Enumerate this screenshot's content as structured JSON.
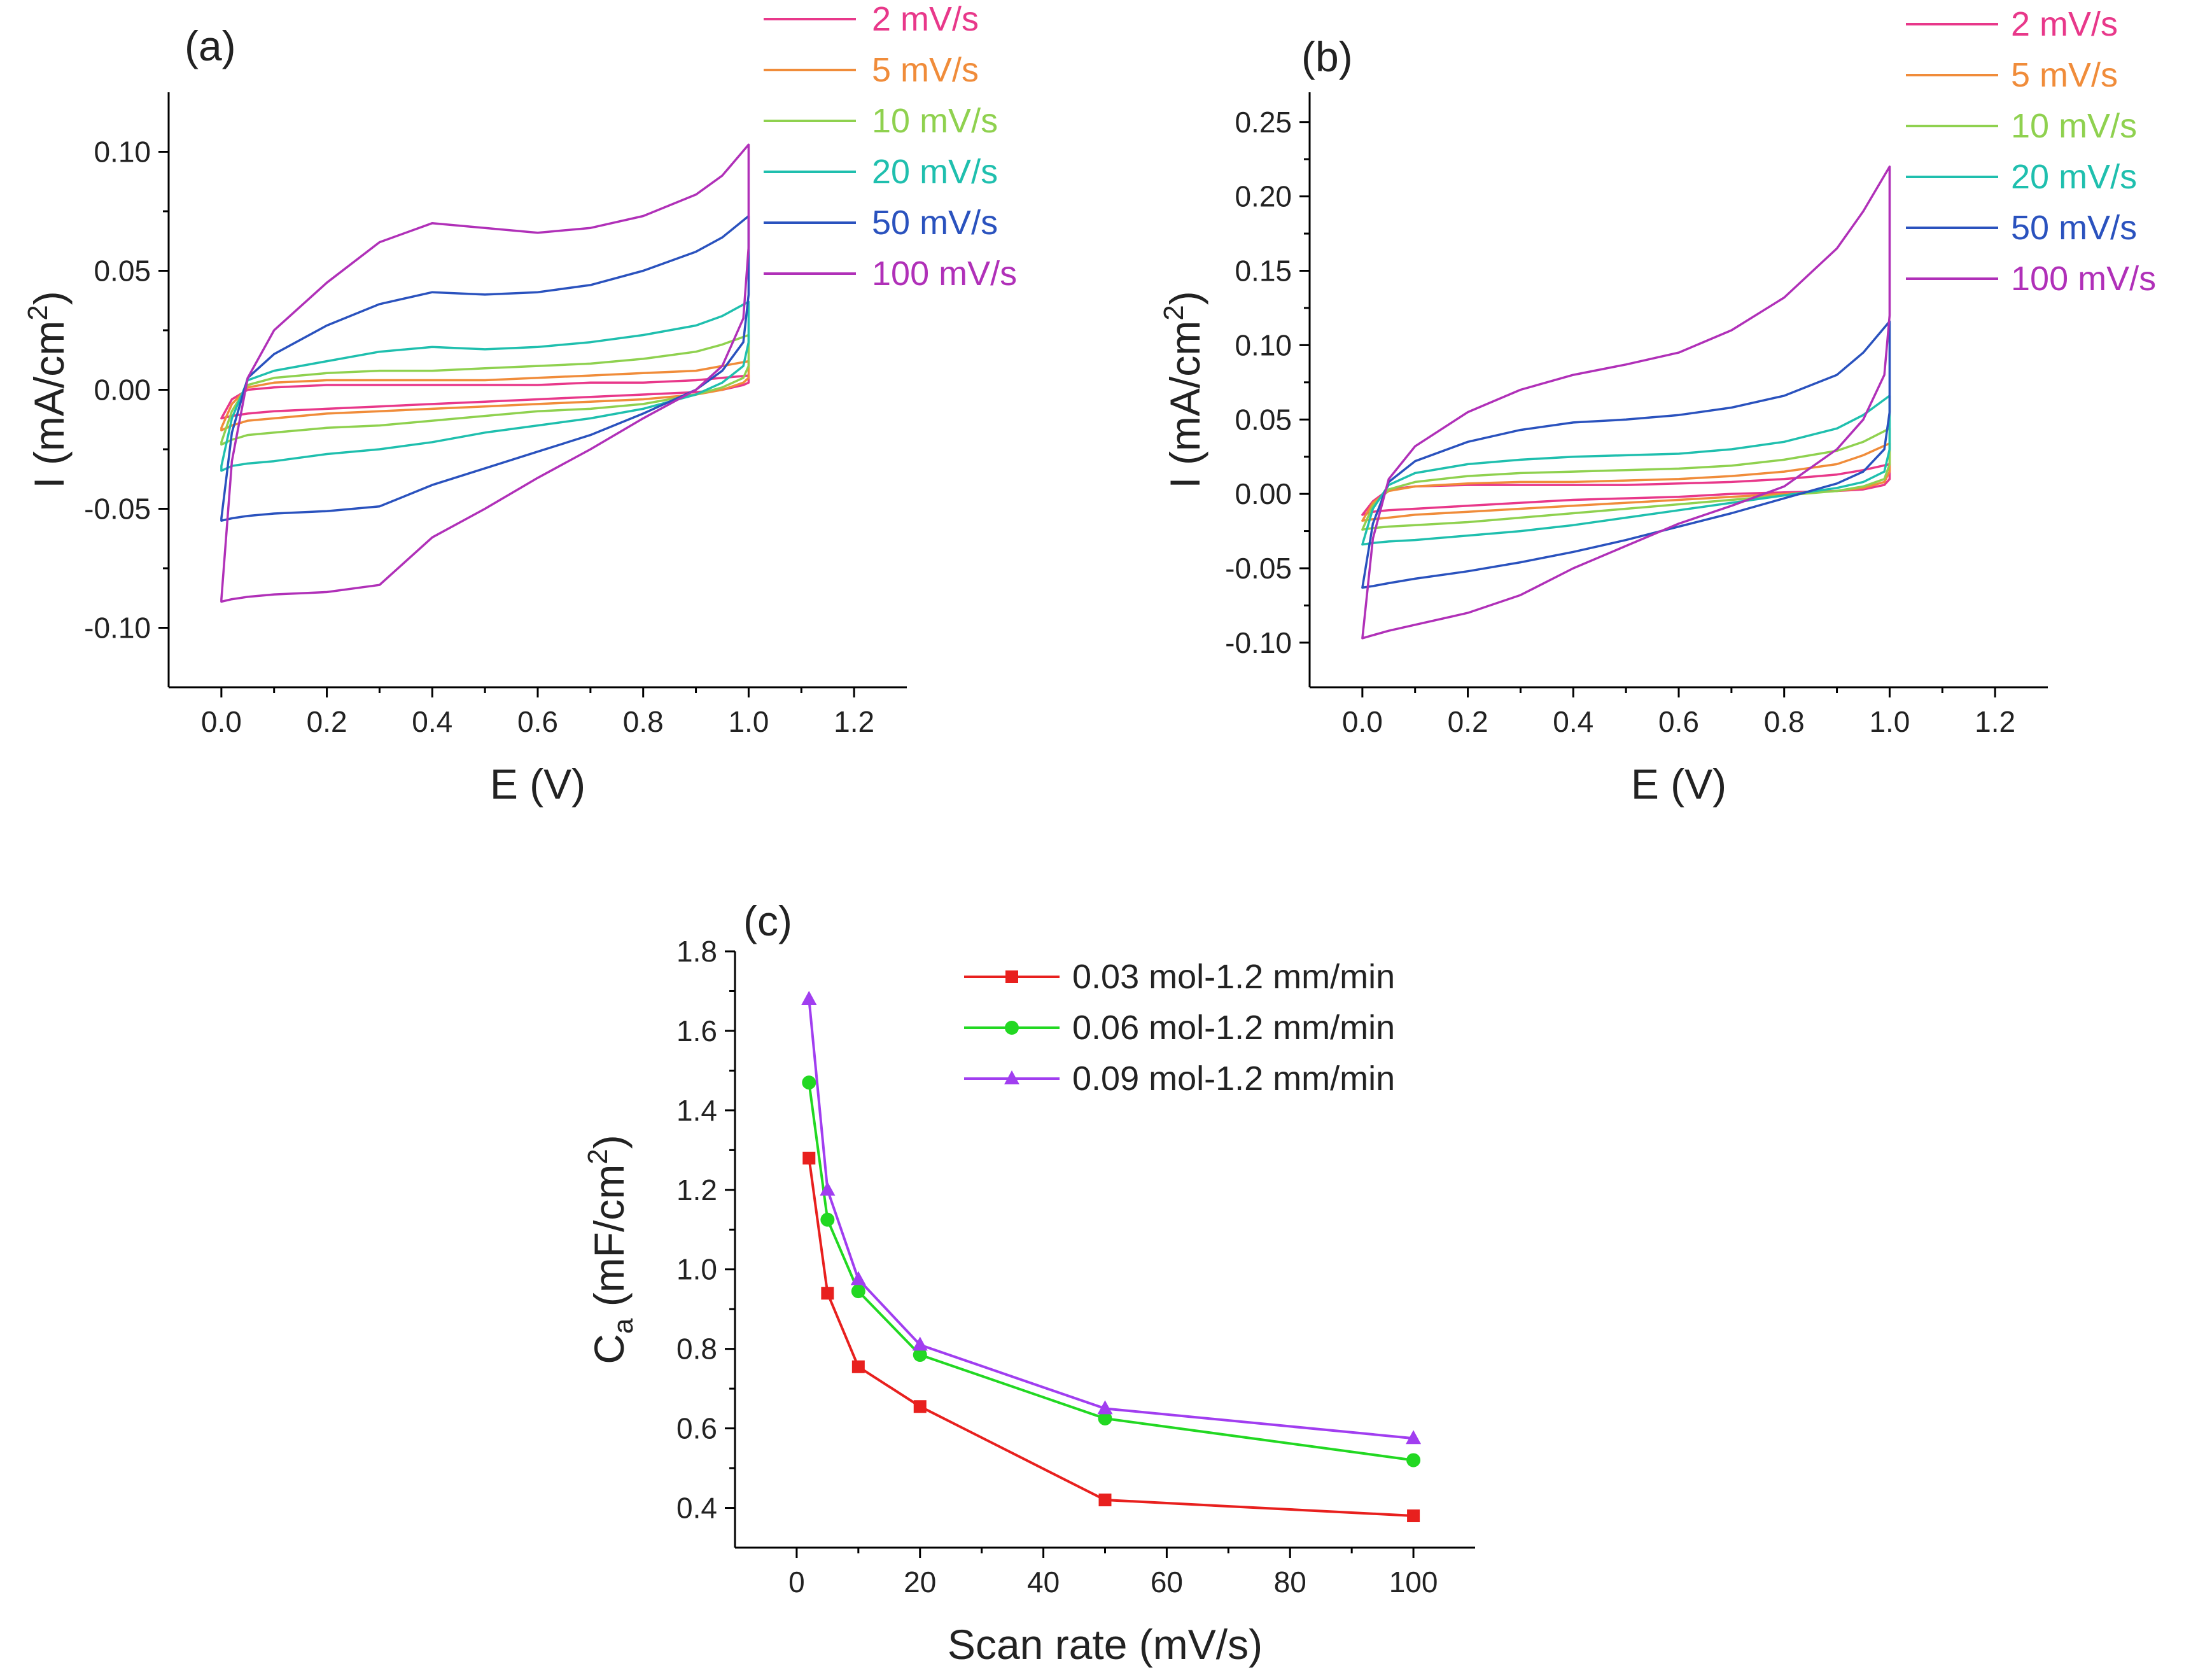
{
  "chart_data": [
    {
      "type": "line",
      "panel_label": "(a)",
      "xlabel": "E (V)",
      "ylabel_main": "I (mA/cm",
      "ylabel_sup": "2",
      "ylabel_close": ")",
      "xlim": [
        -0.1,
        1.3
      ],
      "ylim": [
        -0.125,
        0.125
      ],
      "x_ticks": [
        "0.0",
        "0.2",
        "0.4",
        "0.6",
        "0.8",
        "1.0",
        "1.2"
      ],
      "y_ticks": [
        "-0.10",
        "-0.05",
        "0.00",
        "0.05",
        "0.10"
      ],
      "legend_position": "top-right-outside",
      "series": [
        {
          "name": "2 mV/s",
          "color": "#e8388a",
          "x": [
            0,
            0.02,
            0.05,
            0.1,
            0.2,
            0.3,
            0.4,
            0.5,
            0.6,
            0.7,
            0.8,
            0.9,
            0.95,
            1.0,
            1.0,
            0.99,
            0.95,
            0.9,
            0.8,
            0.7,
            0.6,
            0.5,
            0.4,
            0.3,
            0.2,
            0.1,
            0.05,
            0.02,
            0
          ],
          "y": [
            -0.012,
            -0.004,
            0.0,
            0.001,
            0.002,
            0.002,
            0.002,
            0.002,
            0.002,
            0.003,
            0.003,
            0.004,
            0.005,
            0.006,
            0.003,
            0.002,
            0.0,
            -0.001,
            -0.002,
            -0.003,
            -0.004,
            -0.005,
            -0.006,
            -0.007,
            -0.008,
            -0.009,
            -0.01,
            -0.011,
            -0.012
          ]
        },
        {
          "name": "5 mV/s",
          "color": "#f08c3a",
          "x": [
            0,
            0.02,
            0.05,
            0.1,
            0.2,
            0.3,
            0.4,
            0.5,
            0.6,
            0.7,
            0.8,
            0.9,
            0.95,
            1.0,
            1.0,
            0.99,
            0.95,
            0.9,
            0.8,
            0.7,
            0.6,
            0.5,
            0.4,
            0.3,
            0.2,
            0.1,
            0.05,
            0.02,
            0
          ],
          "y": [
            -0.016,
            -0.006,
            0.001,
            0.003,
            0.004,
            0.004,
            0.004,
            0.004,
            0.005,
            0.006,
            0.007,
            0.008,
            0.01,
            0.012,
            0.005,
            0.003,
            0.0,
            -0.002,
            -0.004,
            -0.005,
            -0.006,
            -0.007,
            -0.008,
            -0.009,
            -0.01,
            -0.012,
            -0.013,
            -0.015,
            -0.017
          ]
        },
        {
          "name": "10 mV/s",
          "color": "#8fd14f",
          "x": [
            0,
            0.02,
            0.05,
            0.1,
            0.2,
            0.3,
            0.4,
            0.5,
            0.6,
            0.7,
            0.8,
            0.9,
            0.95,
            1.0,
            1.0,
            0.99,
            0.95,
            0.9,
            0.8,
            0.7,
            0.6,
            0.5,
            0.4,
            0.3,
            0.2,
            0.1,
            0.05,
            0.02,
            0
          ],
          "y": [
            -0.022,
            -0.009,
            0.002,
            0.005,
            0.007,
            0.008,
            0.008,
            0.009,
            0.01,
            0.011,
            0.013,
            0.016,
            0.019,
            0.023,
            0.01,
            0.005,
            0.001,
            -0.002,
            -0.006,
            -0.008,
            -0.009,
            -0.011,
            -0.013,
            -0.015,
            -0.016,
            -0.018,
            -0.019,
            -0.021,
            -0.023
          ]
        },
        {
          "name": "20 mV/s",
          "color": "#1fbfae",
          "x": [
            0,
            0.02,
            0.05,
            0.1,
            0.2,
            0.3,
            0.4,
            0.5,
            0.6,
            0.7,
            0.8,
            0.9,
            0.95,
            1.0,
            1.0,
            0.99,
            0.95,
            0.9,
            0.8,
            0.7,
            0.6,
            0.5,
            0.4,
            0.3,
            0.2,
            0.1,
            0.05,
            0.02,
            0
          ],
          "y": [
            -0.032,
            -0.012,
            0.004,
            0.008,
            0.012,
            0.016,
            0.018,
            0.017,
            0.018,
            0.02,
            0.023,
            0.027,
            0.031,
            0.037,
            0.02,
            0.01,
            0.003,
            -0.002,
            -0.008,
            -0.012,
            -0.015,
            -0.018,
            -0.022,
            -0.025,
            -0.027,
            -0.03,
            -0.031,
            -0.032,
            -0.034
          ]
        },
        {
          "name": "50 mV/s",
          "color": "#2a52be",
          "x": [
            0,
            0.02,
            0.05,
            0.1,
            0.2,
            0.3,
            0.4,
            0.5,
            0.6,
            0.7,
            0.8,
            0.9,
            0.95,
            1.0,
            1.0,
            0.99,
            0.95,
            0.9,
            0.8,
            0.7,
            0.6,
            0.5,
            0.4,
            0.3,
            0.2,
            0.1,
            0.05,
            0.02,
            0
          ],
          "y": [
            -0.054,
            -0.018,
            0.005,
            0.015,
            0.027,
            0.036,
            0.041,
            0.04,
            0.041,
            0.044,
            0.05,
            0.058,
            0.064,
            0.073,
            0.04,
            0.02,
            0.008,
            0.0,
            -0.01,
            -0.019,
            -0.026,
            -0.033,
            -0.04,
            -0.049,
            -0.051,
            -0.052,
            -0.053,
            -0.054,
            -0.055
          ]
        },
        {
          "name": "100 mV/s",
          "color": "#b030b8",
          "x": [
            0,
            0.02,
            0.05,
            0.1,
            0.2,
            0.3,
            0.4,
            0.5,
            0.6,
            0.7,
            0.8,
            0.9,
            0.95,
            1.0,
            1.0,
            0.99,
            0.95,
            0.9,
            0.8,
            0.7,
            0.6,
            0.5,
            0.4,
            0.3,
            0.2,
            0.1,
            0.05,
            0.02,
            0
          ],
          "y": [
            -0.088,
            -0.03,
            0.005,
            0.025,
            0.045,
            0.062,
            0.07,
            0.068,
            0.066,
            0.068,
            0.073,
            0.082,
            0.09,
            0.103,
            0.06,
            0.03,
            0.01,
            0.0,
            -0.012,
            -0.025,
            -0.037,
            -0.05,
            -0.062,
            -0.082,
            -0.085,
            -0.086,
            -0.087,
            -0.088,
            -0.089
          ]
        }
      ]
    },
    {
      "type": "line",
      "panel_label": "(b)",
      "xlabel": "E (V)",
      "ylabel_main": "I (mA/cm",
      "ylabel_sup": "2",
      "ylabel_close": ")",
      "xlim": [
        -0.1,
        1.3
      ],
      "ylim": [
        -0.13,
        0.27
      ],
      "x_ticks": [
        "0.0",
        "0.2",
        "0.4",
        "0.6",
        "0.8",
        "1.0",
        "1.2"
      ],
      "y_ticks": [
        "-0.10",
        "-0.05",
        "0.00",
        "0.05",
        "0.10",
        "0.15",
        "0.20",
        "0.25"
      ],
      "legend_position": "top-right-outside",
      "series": [
        {
          "name": "2 mV/s",
          "color": "#e8388a",
          "x": [
            0,
            0.02,
            0.05,
            0.1,
            0.2,
            0.3,
            0.4,
            0.5,
            0.6,
            0.7,
            0.8,
            0.9,
            0.95,
            1.0,
            1.0,
            0.99,
            0.95,
            0.9,
            0.8,
            0.7,
            0.6,
            0.5,
            0.4,
            0.3,
            0.2,
            0.1,
            0.05,
            0.02,
            0
          ],
          "y": [
            -0.014,
            -0.005,
            0.003,
            0.005,
            0.006,
            0.006,
            0.006,
            0.006,
            0.007,
            0.008,
            0.01,
            0.013,
            0.016,
            0.02,
            0.01,
            0.006,
            0.003,
            0.002,
            0.001,
            0.0,
            -0.002,
            -0.003,
            -0.004,
            -0.006,
            -0.008,
            -0.01,
            -0.011,
            -0.012,
            -0.014
          ]
        },
        {
          "name": "5 mV/s",
          "color": "#f08c3a",
          "x": [
            0,
            0.02,
            0.05,
            0.1,
            0.2,
            0.3,
            0.4,
            0.5,
            0.6,
            0.7,
            0.8,
            0.9,
            0.95,
            1.0,
            1.0,
            0.99,
            0.95,
            0.9,
            0.8,
            0.7,
            0.6,
            0.5,
            0.4,
            0.3,
            0.2,
            0.1,
            0.05,
            0.02,
            0
          ],
          "y": [
            -0.018,
            -0.006,
            0.002,
            0.005,
            0.007,
            0.008,
            0.008,
            0.009,
            0.01,
            0.012,
            0.015,
            0.02,
            0.026,
            0.034,
            0.015,
            0.008,
            0.004,
            0.002,
            0.0,
            -0.002,
            -0.004,
            -0.006,
            -0.008,
            -0.01,
            -0.012,
            -0.014,
            -0.016,
            -0.017,
            -0.018
          ]
        },
        {
          "name": "10 mV/s",
          "color": "#8fd14f",
          "x": [
            0,
            0.02,
            0.05,
            0.1,
            0.2,
            0.3,
            0.4,
            0.5,
            0.6,
            0.7,
            0.8,
            0.9,
            0.95,
            1.0,
            1.0,
            0.99,
            0.95,
            0.9,
            0.8,
            0.7,
            0.6,
            0.5,
            0.4,
            0.3,
            0.2,
            0.1,
            0.05,
            0.02,
            0
          ],
          "y": [
            -0.024,
            -0.008,
            0.003,
            0.008,
            0.012,
            0.014,
            0.015,
            0.016,
            0.017,
            0.019,
            0.023,
            0.029,
            0.035,
            0.044,
            0.02,
            0.01,
            0.005,
            0.002,
            -0.001,
            -0.004,
            -0.007,
            -0.01,
            -0.013,
            -0.016,
            -0.019,
            -0.021,
            -0.022,
            -0.023,
            -0.024
          ]
        },
        {
          "name": "20 mV/s",
          "color": "#1fbfae",
          "x": [
            0,
            0.02,
            0.05,
            0.1,
            0.2,
            0.3,
            0.4,
            0.5,
            0.6,
            0.7,
            0.8,
            0.9,
            0.95,
            1.0,
            1.0,
            0.99,
            0.95,
            0.9,
            0.8,
            0.7,
            0.6,
            0.5,
            0.4,
            0.3,
            0.2,
            0.1,
            0.05,
            0.02,
            0
          ],
          "y": [
            -0.034,
            -0.01,
            0.006,
            0.014,
            0.02,
            0.023,
            0.025,
            0.026,
            0.027,
            0.03,
            0.035,
            0.044,
            0.053,
            0.066,
            0.03,
            0.015,
            0.008,
            0.004,
            -0.001,
            -0.006,
            -0.011,
            -0.016,
            -0.021,
            -0.025,
            -0.028,
            -0.031,
            -0.032,
            -0.033,
            -0.034
          ]
        },
        {
          "name": "50 mV/s",
          "color": "#2a52be",
          "x": [
            0,
            0.02,
            0.05,
            0.1,
            0.2,
            0.3,
            0.4,
            0.5,
            0.6,
            0.7,
            0.8,
            0.9,
            0.95,
            1.0,
            1.0,
            0.99,
            0.95,
            0.9,
            0.8,
            0.7,
            0.6,
            0.5,
            0.4,
            0.3,
            0.2,
            0.1,
            0.05,
            0.02,
            0
          ],
          "y": [
            -0.063,
            -0.02,
            0.008,
            0.022,
            0.035,
            0.043,
            0.048,
            0.05,
            0.053,
            0.058,
            0.066,
            0.08,
            0.095,
            0.116,
            0.055,
            0.03,
            0.015,
            0.007,
            -0.003,
            -0.013,
            -0.022,
            -0.031,
            -0.039,
            -0.046,
            -0.052,
            -0.057,
            -0.06,
            -0.062,
            -0.063
          ]
        },
        {
          "name": "100 mV/s",
          "color": "#b030b8",
          "x": [
            0,
            0.02,
            0.05,
            0.1,
            0.2,
            0.3,
            0.4,
            0.5,
            0.6,
            0.7,
            0.8,
            0.9,
            0.95,
            1.0,
            1.0,
            0.99,
            0.95,
            0.9,
            0.8,
            0.7,
            0.6,
            0.5,
            0.4,
            0.3,
            0.2,
            0.1,
            0.05,
            0.02,
            0
          ],
          "y": [
            -0.097,
            -0.03,
            0.01,
            0.032,
            0.055,
            0.07,
            0.08,
            0.087,
            0.095,
            0.11,
            0.132,
            0.165,
            0.19,
            0.22,
            0.12,
            0.08,
            0.05,
            0.03,
            0.005,
            -0.008,
            -0.02,
            -0.035,
            -0.05,
            -0.068,
            -0.08,
            -0.088,
            -0.092,
            -0.095,
            -0.097
          ]
        }
      ]
    },
    {
      "type": "line",
      "panel_label": "(c)",
      "xlabel": "Scan rate (mV/s)",
      "ylabel_main": "C",
      "ylabel_sub": "a",
      "ylabel_mid": " (mF/cm",
      "ylabel_sup": "2",
      "ylabel_close": ")",
      "xlim": [
        -10,
        110
      ],
      "ylim": [
        0.3,
        1.8
      ],
      "x_ticks": [
        "0",
        "20",
        "40",
        "60",
        "80",
        "100"
      ],
      "y_ticks": [
        "0.4",
        "0.6",
        "0.8",
        "1.0",
        "1.2",
        "1.4",
        "1.6",
        "1.8"
      ],
      "legend_position": "top-right",
      "series": [
        {
          "name": "0.03 mol-1.2 mm/min",
          "color": "#e8201e",
          "marker": "square",
          "x": [
            2,
            5,
            10,
            20,
            50,
            100
          ],
          "y": [
            1.28,
            0.94,
            0.755,
            0.655,
            0.42,
            0.38
          ]
        },
        {
          "name": "0.06 mol-1.2 mm/min",
          "color": "#22d822",
          "marker": "circle",
          "x": [
            2,
            5,
            10,
            20,
            50,
            100
          ],
          "y": [
            1.47,
            1.125,
            0.945,
            0.785,
            0.625,
            0.52
          ]
        },
        {
          "name": "0.09 mol-1.2 mm/min",
          "color": "#a13ef0",
          "marker": "triangle",
          "x": [
            2,
            5,
            10,
            20,
            50,
            100
          ],
          "y": [
            1.68,
            1.2,
            0.975,
            0.81,
            0.65,
            0.575
          ]
        }
      ]
    }
  ]
}
